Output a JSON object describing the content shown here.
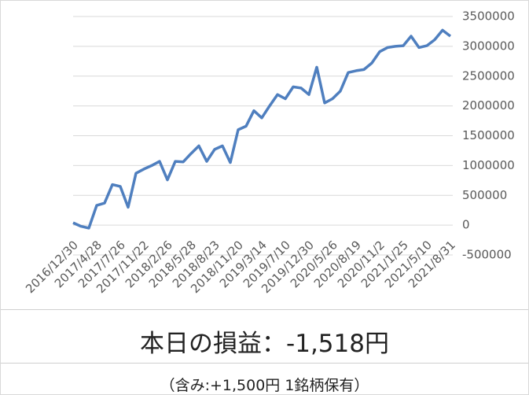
{
  "chart_data": {
    "type": "line",
    "categories": [
      "2016/12/30",
      null,
      null,
      "2017/4/28",
      null,
      null,
      "2017/7/26",
      null,
      null,
      "2017/11/22",
      null,
      null,
      "2018/2/26",
      null,
      null,
      "2018/5/28",
      null,
      null,
      "2018/8/23",
      null,
      null,
      "2018/11/20",
      null,
      null,
      "2019/3/14",
      null,
      null,
      "2019/7/10",
      null,
      null,
      "2019/12/30",
      null,
      null,
      "2020/5/26",
      null,
      null,
      "2020/8/19",
      null,
      null,
      "2020/11/2",
      null,
      null,
      "2021/1/25",
      null,
      null,
      "2021/5/10",
      null,
      null,
      "2021/8/31"
    ],
    "values": [
      40000,
      -20000,
      -50000,
      330000,
      370000,
      680000,
      650000,
      300000,
      870000,
      940000,
      1000000,
      1070000,
      760000,
      1070000,
      1060000,
      1200000,
      1330000,
      1070000,
      1270000,
      1330000,
      1050000,
      1600000,
      1660000,
      1920000,
      1800000,
      2000000,
      2190000,
      2120000,
      2320000,
      2300000,
      2190000,
      2650000,
      2050000,
      2120000,
      2250000,
      2560000,
      2590000,
      2610000,
      2720000,
      2910000,
      2980000,
      3000000,
      3010000,
      3170000,
      2980000,
      3010000,
      3110000,
      3270000,
      3170000
    ],
    "color": "#4f7fbf",
    "ylim": [
      -500000,
      3500000
    ],
    "yticks": [
      -500000,
      0,
      500000,
      1000000,
      1500000,
      2000000,
      2500000,
      3000000,
      3500000
    ],
    "grid": true
  },
  "info": {
    "profit": "本日の損益：-1,518円",
    "detail": "（含み:+1,500円  1銘柄保有）"
  }
}
